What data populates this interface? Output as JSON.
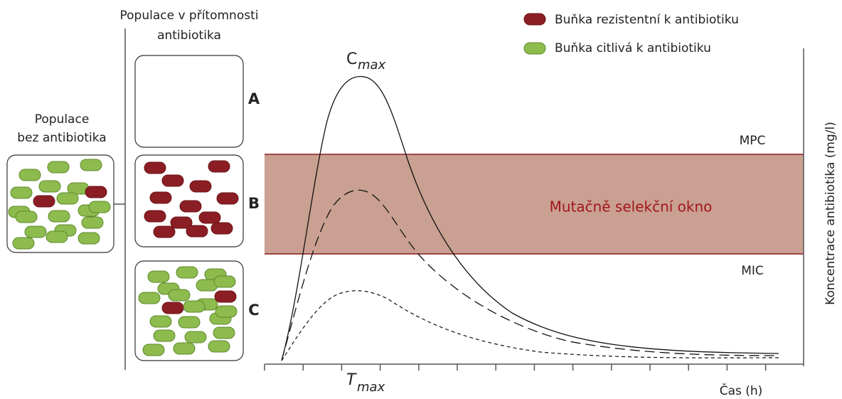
{
  "population_without": {
    "title_lines": [
      "Populace",
      "bez antibiotika"
    ]
  },
  "population_with": {
    "title_lines": [
      "Populace v přítomnosti",
      "antibiotika"
    ]
  },
  "scenarios": [
    "A",
    "B",
    "C"
  ],
  "legend": [
    "Buňka rezistentní k antibiotiku",
    "Buňka citlivá k antibiotiku"
  ],
  "graph": {
    "c_max": {
      "symbol": "C",
      "subscript": "max"
    },
    "t_max": {
      "symbol": "T",
      "subscript": "max"
    },
    "mpc": "MPC",
    "mic": "MIC",
    "window": "Mutačně selekční okno",
    "y_axis": "Koncentrace antibiotika (mg/l)",
    "x_axis": "Čas (h)"
  }
}
